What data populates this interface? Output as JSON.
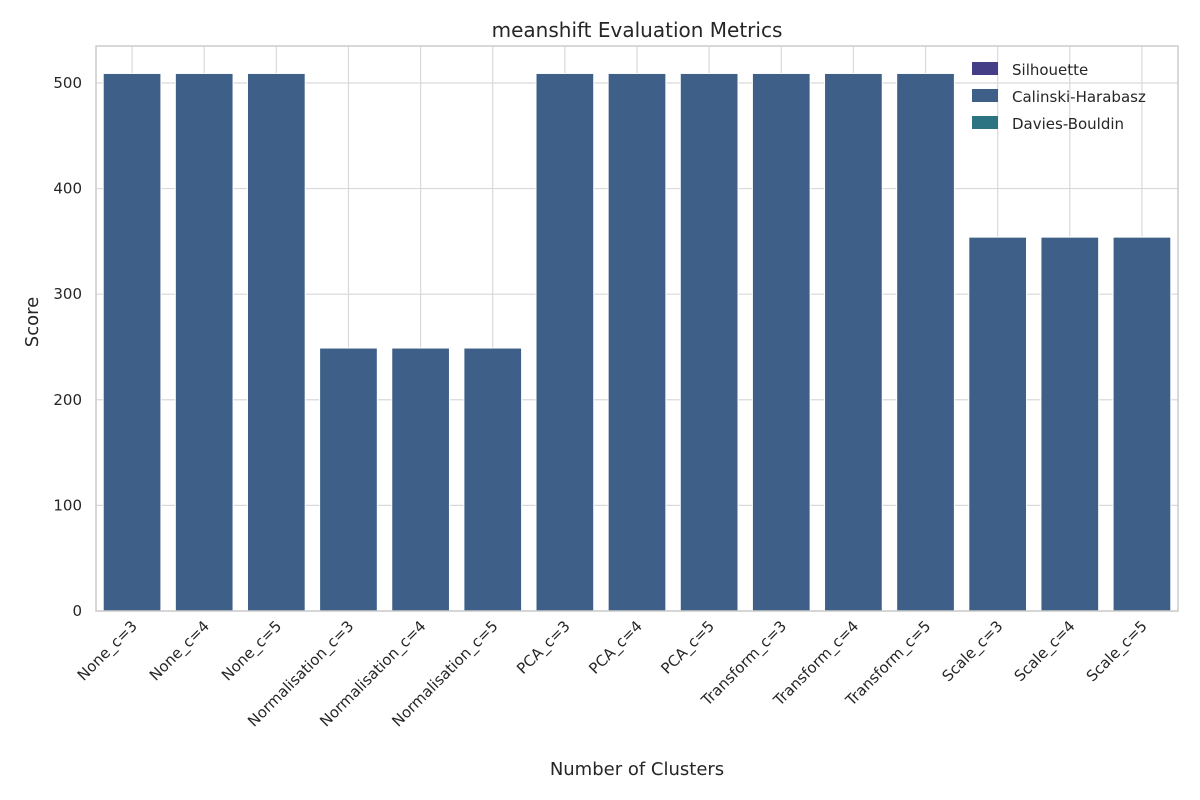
{
  "chart_data": {
    "type": "bar",
    "title": "meanshift Evaluation Metrics",
    "xlabel": "Number of Clusters",
    "ylabel": "Score",
    "ylim": [
      0,
      535
    ],
    "yticks": [
      0,
      100,
      200,
      300,
      400,
      500
    ],
    "grid": true,
    "legend_position": "top-right",
    "categories": [
      "None_c=3",
      "None_c=4",
      "None_c=5",
      "Normalisation_c=3",
      "Normalisation_c=4",
      "Normalisation_c=5",
      "PCA_c=3",
      "PCA_c=4",
      "PCA_c=5",
      "Transform_c=3",
      "Transform_c=4",
      "Transform_c=5",
      "Scale_c=3",
      "Scale_c=4",
      "Scale_c=5"
    ],
    "series": [
      {
        "name": "Silhouette",
        "color": "#433e85",
        "values": [
          0.6,
          0.6,
          0.6,
          0.5,
          0.5,
          0.5,
          0.6,
          0.6,
          0.6,
          0.6,
          0.6,
          0.6,
          0.5,
          0.5,
          0.5
        ]
      },
      {
        "name": "Calinski-Harabasz",
        "color": "#3e5f88",
        "values": [
          509,
          509,
          509,
          249,
          249,
          249,
          509,
          509,
          509,
          509,
          509,
          509,
          354,
          354,
          354
        ]
      },
      {
        "name": "Davies-Bouldin",
        "color": "#2c7482",
        "values": [
          0.6,
          0.6,
          0.6,
          0.8,
          0.8,
          0.8,
          0.6,
          0.6,
          0.6,
          0.6,
          0.6,
          0.6,
          0.7,
          0.7,
          0.7
        ]
      }
    ]
  }
}
